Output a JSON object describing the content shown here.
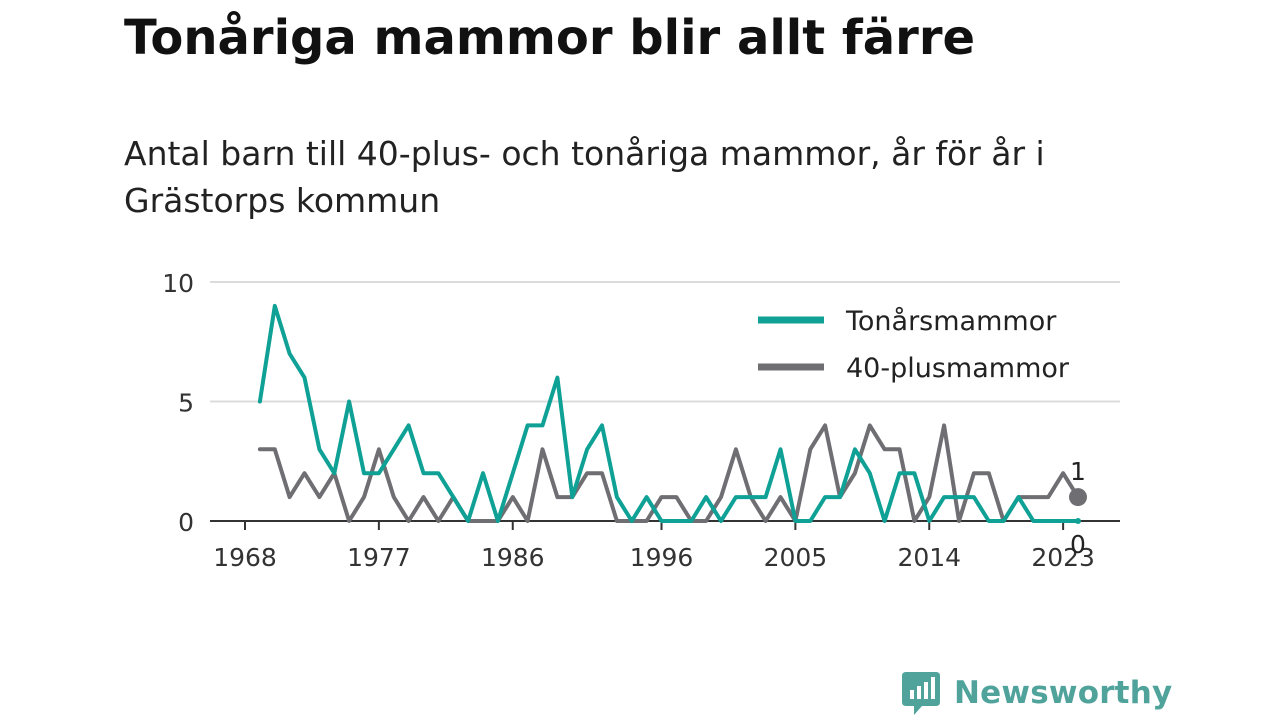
{
  "header": {
    "title": "Tonåriga mammor blir allt färre",
    "subtitle": "Antal barn till 40-plus- och tonåriga mammor, år för år i Grästorps kommun"
  },
  "chart_data": {
    "type": "line",
    "x": [
      1969,
      1970,
      1971,
      1972,
      1973,
      1974,
      1975,
      1976,
      1977,
      1978,
      1979,
      1980,
      1981,
      1982,
      1983,
      1984,
      1985,
      1986,
      1987,
      1988,
      1989,
      1990,
      1991,
      1992,
      1993,
      1994,
      1995,
      1996,
      1997,
      1998,
      1999,
      2000,
      2001,
      2002,
      2003,
      2004,
      2005,
      2006,
      2007,
      2008,
      2009,
      2010,
      2011,
      2012,
      2013,
      2014,
      2015,
      2016,
      2017,
      2018,
      2019,
      2020,
      2021,
      2022,
      2023,
      2024
    ],
    "series": [
      {
        "name": "Tonårsmammor",
        "color": "#0fa195",
        "values": [
          5,
          9,
          7,
          6,
          3,
          2,
          5,
          2,
          2,
          3,
          4,
          2,
          2,
          1,
          0,
          2,
          0,
          2,
          4,
          4,
          6,
          1,
          3,
          4,
          1,
          0,
          1,
          0,
          0,
          0,
          1,
          0,
          1,
          1,
          1,
          3,
          0,
          0,
          1,
          1,
          3,
          2,
          0,
          2,
          2,
          0,
          1,
          1,
          1,
          0,
          0,
          1,
          0,
          0,
          0,
          0
        ]
      },
      {
        "name": "40-plusmammor",
        "color": "#6e6e73",
        "values": [
          3,
          3,
          1,
          2,
          1,
          2,
          0,
          1,
          3,
          1,
          0,
          1,
          0,
          1,
          0,
          0,
          0,
          1,
          0,
          3,
          1,
          1,
          2,
          2,
          0,
          0,
          0,
          1,
          1,
          0,
          0,
          1,
          3,
          1,
          0,
          1,
          0,
          3,
          4,
          1,
          2,
          4,
          3,
          3,
          0,
          1,
          4,
          0,
          2,
          2,
          0,
          1,
          1,
          1,
          2,
          1
        ]
      }
    ],
    "xticks": [
      1968,
      1977,
      1986,
      1996,
      2005,
      2014,
      2023
    ],
    "yticks": [
      0,
      5,
      10
    ],
    "ylim": [
      0,
      10
    ],
    "xlim": [
      1968,
      2024
    ],
    "grid": true,
    "legend": "top-right",
    "end_labels": {
      "Tonårsmammor": "0",
      "40-plusmammor": "1"
    }
  },
  "footer": {
    "brand": "Newsworthy",
    "brand_color": "#4fa39b"
  }
}
